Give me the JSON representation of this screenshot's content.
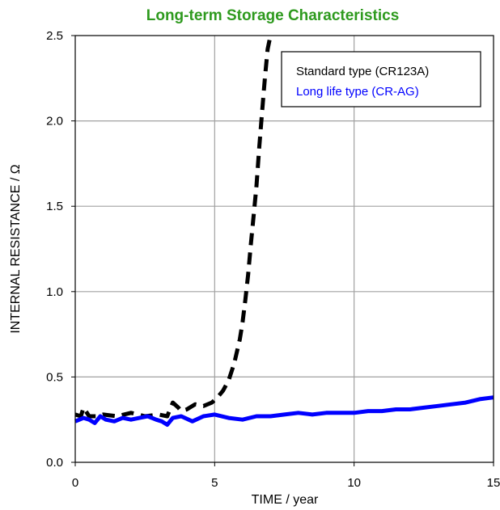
{
  "chart_data": {
    "type": "line",
    "title": "Long-term Storage Characteristics",
    "xlabel": "TIME / year",
    "ylabel": "INTERNAL RESISTANCE / Ω",
    "xlim": [
      0,
      15
    ],
    "ylim": [
      0,
      2.5
    ],
    "xticks": [
      0,
      5,
      10,
      15
    ],
    "xtick_labels": [
      "0",
      "5",
      "10",
      "15"
    ],
    "yticks": [
      0,
      0.5,
      1.0,
      1.5,
      2.0,
      2.5
    ],
    "ytick_labels": [
      "0.0",
      "0.5",
      "1.0",
      "1.5",
      "2.0",
      "2.5"
    ],
    "grid": true,
    "legend_position": "top-right",
    "series": [
      {
        "name": "Standard type (CR123A)",
        "color": "#000000",
        "style": "dashed",
        "x": [
          0,
          0.2,
          0.3,
          0.5,
          0.8,
          1.0,
          1.5,
          2.0,
          2.5,
          3.0,
          3.3,
          3.5,
          3.7,
          3.8,
          4.0,
          4.3,
          4.6,
          4.9,
          5.1,
          5.3,
          5.5,
          5.7,
          5.9,
          6.0,
          6.1,
          6.2,
          6.3,
          6.4,
          6.5,
          6.6,
          6.7,
          6.8,
          6.9,
          7.0
        ],
        "values": [
          0.28,
          0.27,
          0.32,
          0.27,
          0.27,
          0.28,
          0.27,
          0.29,
          0.27,
          0.28,
          0.27,
          0.35,
          0.32,
          0.3,
          0.31,
          0.34,
          0.33,
          0.35,
          0.38,
          0.42,
          0.48,
          0.58,
          0.72,
          0.82,
          0.95,
          1.1,
          1.28,
          1.45,
          1.62,
          1.85,
          2.05,
          2.25,
          2.42,
          2.5
        ]
      },
      {
        "name": "Long life type (CR-AG)",
        "color": "#0000ff",
        "style": "solid",
        "x": [
          0,
          0.3,
          0.5,
          0.7,
          0.9,
          1.1,
          1.4,
          1.7,
          2.0,
          2.3,
          2.6,
          2.9,
          3.1,
          3.3,
          3.5,
          3.8,
          4.2,
          4.6,
          5.0,
          5.5,
          6.0,
          6.5,
          7.0,
          7.5,
          8.0,
          8.5,
          9.0,
          9.5,
          10.0,
          10.5,
          11.0,
          11.5,
          12.0,
          12.5,
          13.0,
          13.5,
          14.0,
          14.5,
          15.0
        ],
        "values": [
          0.24,
          0.26,
          0.25,
          0.23,
          0.27,
          0.25,
          0.24,
          0.26,
          0.25,
          0.26,
          0.27,
          0.25,
          0.24,
          0.22,
          0.26,
          0.27,
          0.24,
          0.27,
          0.28,
          0.26,
          0.25,
          0.27,
          0.27,
          0.28,
          0.29,
          0.28,
          0.29,
          0.29,
          0.29,
          0.3,
          0.3,
          0.31,
          0.31,
          0.32,
          0.33,
          0.34,
          0.35,
          0.37,
          0.38
        ]
      }
    ]
  },
  "colors": {
    "title": "#2e9a1e",
    "grid": "#a0a0a0",
    "axis": "#000000"
  }
}
